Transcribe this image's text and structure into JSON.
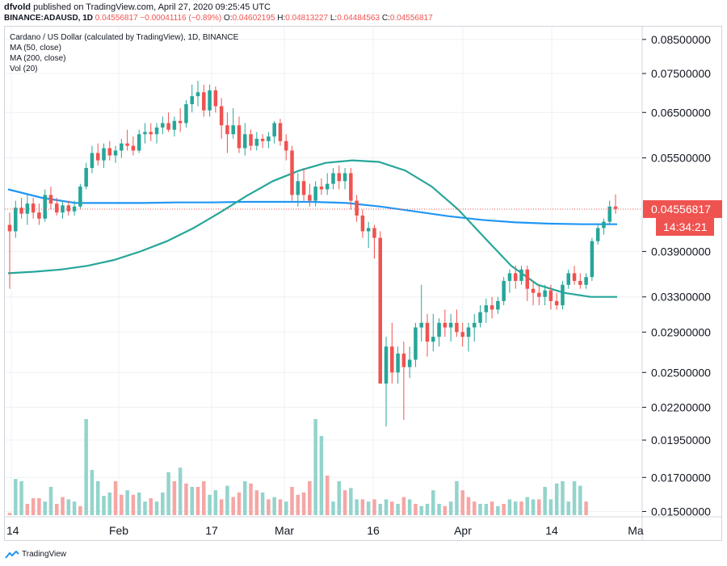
{
  "header": {
    "publisher": "dfvold",
    "published_text": "published on TradingView.com, April 27, 2020 09:25:45 UTC",
    "symbol": "BINANCE:ADAUSD, 1D",
    "last": "0.04556817",
    "change": "−0.00041116 (−0.89%)",
    "o_label": "O:",
    "o": "0.04602195",
    "h_label": "H:",
    "h": "0.04813227",
    "l_label": "L:",
    "l": "0.04484563",
    "c_label": "C:",
    "c": "0.04556817"
  },
  "legend": {
    "title": "Cardano / US Dollar (calculated by TradingView), 1D, BINANCE",
    "ma50": "MA (50, close)",
    "ma200": "MA (200, close)",
    "vol": "Vol (20)"
  },
  "footer": {
    "brand": "TradingView"
  },
  "colors": {
    "up": "#26a69a",
    "down": "#ef5350",
    "ma50": "#26a69a",
    "ma200": "#2196f3",
    "vol_up": "#93d4cc",
    "vol_down": "#f5a6a5"
  },
  "chart_data": {
    "type": "candlestick",
    "title": "Cardano / US Dollar (calculated by TradingView), 1D, BINANCE",
    "y_scale": "log",
    "ylim": [
      0.0148,
      0.087
    ],
    "y_ticks": [
      "0.08500000",
      "0.07500000",
      "0.06500000",
      "0.05500000",
      "0.03900000",
      "0.03300000",
      "0.02900000",
      "0.02500000",
      "0.02200000",
      "0.01950000",
      "0.01700000",
      "0.01500000"
    ],
    "x_ticks": [
      "14",
      "Feb",
      "17",
      "Mar",
      "16",
      "Apr",
      "14",
      "Ma"
    ],
    "last_price_label": "0.04556817",
    "countdown_label": "14:34:21",
    "candles": [
      {
        "o": 0.043,
        "h": 0.045,
        "l": 0.034,
        "c": 0.042
      },
      {
        "o": 0.042,
        "h": 0.047,
        "l": 0.041,
        "c": 0.0458
      },
      {
        "o": 0.0458,
        "h": 0.0475,
        "l": 0.044,
        "c": 0.0448
      },
      {
        "o": 0.0448,
        "h": 0.048,
        "l": 0.043,
        "c": 0.0465
      },
      {
        "o": 0.0465,
        "h": 0.0475,
        "l": 0.044,
        "c": 0.045
      },
      {
        "o": 0.045,
        "h": 0.0465,
        "l": 0.043,
        "c": 0.044
      },
      {
        "o": 0.044,
        "h": 0.049,
        "l": 0.0435,
        "c": 0.048
      },
      {
        "o": 0.048,
        "h": 0.0495,
        "l": 0.0455,
        "c": 0.0465
      },
      {
        "o": 0.0465,
        "h": 0.0475,
        "l": 0.0445,
        "c": 0.045
      },
      {
        "o": 0.045,
        "h": 0.047,
        "l": 0.044,
        "c": 0.0462
      },
      {
        "o": 0.0462,
        "h": 0.047,
        "l": 0.0445,
        "c": 0.0452
      },
      {
        "o": 0.0452,
        "h": 0.047,
        "l": 0.0445,
        "c": 0.046
      },
      {
        "o": 0.046,
        "h": 0.05,
        "l": 0.0455,
        "c": 0.0495
      },
      {
        "o": 0.0495,
        "h": 0.054,
        "l": 0.049,
        "c": 0.053
      },
      {
        "o": 0.053,
        "h": 0.0575,
        "l": 0.052,
        "c": 0.056
      },
      {
        "o": 0.056,
        "h": 0.058,
        "l": 0.0535,
        "c": 0.0545
      },
      {
        "o": 0.0545,
        "h": 0.058,
        "l": 0.053,
        "c": 0.057
      },
      {
        "o": 0.057,
        "h": 0.0585,
        "l": 0.0545,
        "c": 0.0555
      },
      {
        "o": 0.0555,
        "h": 0.0575,
        "l": 0.054,
        "c": 0.0565
      },
      {
        "o": 0.0565,
        "h": 0.059,
        "l": 0.055,
        "c": 0.058
      },
      {
        "o": 0.058,
        "h": 0.061,
        "l": 0.0565,
        "c": 0.0575
      },
      {
        "o": 0.0575,
        "h": 0.0595,
        "l": 0.0555,
        "c": 0.0565
      },
      {
        "o": 0.0565,
        "h": 0.061,
        "l": 0.056,
        "c": 0.06
      },
      {
        "o": 0.06,
        "h": 0.0625,
        "l": 0.058,
        "c": 0.0605
      },
      {
        "o": 0.0605,
        "h": 0.0625,
        "l": 0.0585,
        "c": 0.06
      },
      {
        "o": 0.06,
        "h": 0.0625,
        "l": 0.058,
        "c": 0.0615
      },
      {
        "o": 0.0615,
        "h": 0.064,
        "l": 0.06,
        "c": 0.0625
      },
      {
        "o": 0.0625,
        "h": 0.065,
        "l": 0.0605,
        "c": 0.061
      },
      {
        "o": 0.061,
        "h": 0.064,
        "l": 0.0595,
        "c": 0.063
      },
      {
        "o": 0.063,
        "h": 0.066,
        "l": 0.0605,
        "c": 0.0625
      },
      {
        "o": 0.0625,
        "h": 0.068,
        "l": 0.0615,
        "c": 0.067
      },
      {
        "o": 0.067,
        "h": 0.072,
        "l": 0.065,
        "c": 0.069
      },
      {
        "o": 0.069,
        "h": 0.073,
        "l": 0.0665,
        "c": 0.07
      },
      {
        "o": 0.07,
        "h": 0.072,
        "l": 0.064,
        "c": 0.0655
      },
      {
        "o": 0.0655,
        "h": 0.072,
        "l": 0.064,
        "c": 0.0705
      },
      {
        "o": 0.0705,
        "h": 0.0715,
        "l": 0.065,
        "c": 0.0665
      },
      {
        "o": 0.0665,
        "h": 0.0685,
        "l": 0.059,
        "c": 0.062
      },
      {
        "o": 0.062,
        "h": 0.065,
        "l": 0.056,
        "c": 0.06
      },
      {
        "o": 0.06,
        "h": 0.066,
        "l": 0.059,
        "c": 0.062
      },
      {
        "o": 0.062,
        "h": 0.064,
        "l": 0.056,
        "c": 0.057
      },
      {
        "o": 0.057,
        "h": 0.0625,
        "l": 0.0555,
        "c": 0.06
      },
      {
        "o": 0.06,
        "h": 0.061,
        "l": 0.0565,
        "c": 0.0575
      },
      {
        "o": 0.0575,
        "h": 0.0605,
        "l": 0.0565,
        "c": 0.059
      },
      {
        "o": 0.059,
        "h": 0.06,
        "l": 0.057,
        "c": 0.0585
      },
      {
        "o": 0.0585,
        "h": 0.0605,
        "l": 0.057,
        "c": 0.0595
      },
      {
        "o": 0.0595,
        "h": 0.063,
        "l": 0.058,
        "c": 0.0625
      },
      {
        "o": 0.0625,
        "h": 0.0635,
        "l": 0.0575,
        "c": 0.0585
      },
      {
        "o": 0.0585,
        "h": 0.06,
        "l": 0.0545,
        "c": 0.0565
      },
      {
        "o": 0.0565,
        "h": 0.0575,
        "l": 0.047,
        "c": 0.048
      },
      {
        "o": 0.048,
        "h": 0.052,
        "l": 0.046,
        "c": 0.0505
      },
      {
        "o": 0.0505,
        "h": 0.053,
        "l": 0.047,
        "c": 0.048
      },
      {
        "o": 0.048,
        "h": 0.05,
        "l": 0.046,
        "c": 0.047
      },
      {
        "o": 0.047,
        "h": 0.0505,
        "l": 0.046,
        "c": 0.0495
      },
      {
        "o": 0.0495,
        "h": 0.051,
        "l": 0.048,
        "c": 0.049
      },
      {
        "o": 0.049,
        "h": 0.052,
        "l": 0.048,
        "c": 0.05
      },
      {
        "o": 0.05,
        "h": 0.053,
        "l": 0.049,
        "c": 0.052
      },
      {
        "o": 0.052,
        "h": 0.0535,
        "l": 0.049,
        "c": 0.0505
      },
      {
        "o": 0.0505,
        "h": 0.053,
        "l": 0.049,
        "c": 0.052
      },
      {
        "o": 0.052,
        "h": 0.053,
        "l": 0.0455,
        "c": 0.047
      },
      {
        "o": 0.047,
        "h": 0.048,
        "l": 0.0435,
        "c": 0.0445
      },
      {
        "o": 0.0445,
        "h": 0.0455,
        "l": 0.041,
        "c": 0.042
      },
      {
        "o": 0.042,
        "h": 0.0435,
        "l": 0.0395,
        "c": 0.0425
      },
      {
        "o": 0.0425,
        "h": 0.043,
        "l": 0.038,
        "c": 0.041
      },
      {
        "o": 0.041,
        "h": 0.042,
        "l": 0.0245,
        "c": 0.024
      },
      {
        "o": 0.024,
        "h": 0.0285,
        "l": 0.0205,
        "c": 0.0275
      },
      {
        "o": 0.0275,
        "h": 0.03,
        "l": 0.024,
        "c": 0.025
      },
      {
        "o": 0.025,
        "h": 0.0275,
        "l": 0.024,
        "c": 0.0268
      },
      {
        "o": 0.0268,
        "h": 0.028,
        "l": 0.021,
        "c": 0.0255
      },
      {
        "o": 0.0255,
        "h": 0.0275,
        "l": 0.0245,
        "c": 0.0262
      },
      {
        "o": 0.0262,
        "h": 0.03,
        "l": 0.0255,
        "c": 0.0295
      },
      {
        "o": 0.0295,
        "h": 0.0345,
        "l": 0.028,
        "c": 0.03
      },
      {
        "o": 0.03,
        "h": 0.031,
        "l": 0.0265,
        "c": 0.028
      },
      {
        "o": 0.028,
        "h": 0.031,
        "l": 0.027,
        "c": 0.0285
      },
      {
        "o": 0.0285,
        "h": 0.0305,
        "l": 0.0275,
        "c": 0.03
      },
      {
        "o": 0.03,
        "h": 0.0315,
        "l": 0.0285,
        "c": 0.0295
      },
      {
        "o": 0.0295,
        "h": 0.031,
        "l": 0.028,
        "c": 0.03
      },
      {
        "o": 0.03,
        "h": 0.0315,
        "l": 0.0285,
        "c": 0.029
      },
      {
        "o": 0.029,
        "h": 0.03,
        "l": 0.0275,
        "c": 0.0285
      },
      {
        "o": 0.0285,
        "h": 0.03,
        "l": 0.027,
        "c": 0.0295
      },
      {
        "o": 0.0295,
        "h": 0.031,
        "l": 0.028,
        "c": 0.03
      },
      {
        "o": 0.03,
        "h": 0.032,
        "l": 0.0295,
        "c": 0.0312
      },
      {
        "o": 0.0312,
        "h": 0.0328,
        "l": 0.03,
        "c": 0.032
      },
      {
        "o": 0.032,
        "h": 0.033,
        "l": 0.0305,
        "c": 0.0315
      },
      {
        "o": 0.0315,
        "h": 0.033,
        "l": 0.031,
        "c": 0.0325
      },
      {
        "o": 0.0325,
        "h": 0.0355,
        "l": 0.032,
        "c": 0.035
      },
      {
        "o": 0.035,
        "h": 0.0365,
        "l": 0.0335,
        "c": 0.036
      },
      {
        "o": 0.036,
        "h": 0.037,
        "l": 0.034,
        "c": 0.035
      },
      {
        "o": 0.035,
        "h": 0.037,
        "l": 0.0345,
        "c": 0.0365
      },
      {
        "o": 0.0365,
        "h": 0.037,
        "l": 0.0325,
        "c": 0.034
      },
      {
        "o": 0.034,
        "h": 0.035,
        "l": 0.032,
        "c": 0.0335
      },
      {
        "o": 0.0335,
        "h": 0.0345,
        "l": 0.032,
        "c": 0.033
      },
      {
        "o": 0.033,
        "h": 0.0345,
        "l": 0.032,
        "c": 0.0338
      },
      {
        "o": 0.0338,
        "h": 0.0345,
        "l": 0.0315,
        "c": 0.0325
      },
      {
        "o": 0.0325,
        "h": 0.0335,
        "l": 0.0315,
        "c": 0.032
      },
      {
        "o": 0.032,
        "h": 0.035,
        "l": 0.0315,
        "c": 0.0345
      },
      {
        "o": 0.0345,
        "h": 0.0365,
        "l": 0.034,
        "c": 0.036
      },
      {
        "o": 0.036,
        "h": 0.037,
        "l": 0.0345,
        "c": 0.035
      },
      {
        "o": 0.035,
        "h": 0.036,
        "l": 0.034,
        "c": 0.0345
      },
      {
        "o": 0.0345,
        "h": 0.036,
        "l": 0.034,
        "c": 0.0355
      },
      {
        "o": 0.0355,
        "h": 0.041,
        "l": 0.035,
        "c": 0.0405
      },
      {
        "o": 0.0405,
        "h": 0.043,
        "l": 0.04,
        "c": 0.0425
      },
      {
        "o": 0.0425,
        "h": 0.044,
        "l": 0.0415,
        "c": 0.0435
      },
      {
        "o": 0.0435,
        "h": 0.047,
        "l": 0.043,
        "c": 0.046
      },
      {
        "o": 0.046,
        "h": 0.0481,
        "l": 0.0448,
        "c": 0.0456
      }
    ],
    "volume": [
      {
        "v": 2,
        "up": false
      },
      {
        "v": 32,
        "up": true
      },
      {
        "v": 30,
        "up": true
      },
      {
        "v": 10,
        "up": false
      },
      {
        "v": 15,
        "up": false
      },
      {
        "v": 15,
        "up": false
      },
      {
        "v": 12,
        "up": true
      },
      {
        "v": 25,
        "up": true
      },
      {
        "v": 10,
        "up": false
      },
      {
        "v": 16,
        "up": false
      },
      {
        "v": 14,
        "up": true
      },
      {
        "v": 12,
        "up": true
      },
      {
        "v": 8,
        "up": false
      },
      {
        "v": 85,
        "up": true
      },
      {
        "v": 40,
        "up": true
      },
      {
        "v": 30,
        "up": true
      },
      {
        "v": 17,
        "up": true
      },
      {
        "v": 20,
        "up": true
      },
      {
        "v": 30,
        "up": false
      },
      {
        "v": 18,
        "up": false
      },
      {
        "v": 22,
        "up": true
      },
      {
        "v": 18,
        "up": false
      },
      {
        "v": 20,
        "up": true
      },
      {
        "v": 12,
        "up": true
      },
      {
        "v": 15,
        "up": false
      },
      {
        "v": 12,
        "up": true
      },
      {
        "v": 20,
        "up": true
      },
      {
        "v": 38,
        "up": true
      },
      {
        "v": 30,
        "up": false
      },
      {
        "v": 42,
        "up": true
      },
      {
        "v": 28,
        "up": false
      },
      {
        "v": 25,
        "up": true
      },
      {
        "v": 25,
        "up": false
      },
      {
        "v": 30,
        "up": false
      },
      {
        "v": 18,
        "up": true
      },
      {
        "v": 22,
        "up": true
      },
      {
        "v": 14,
        "up": false
      },
      {
        "v": 26,
        "up": true
      },
      {
        "v": 16,
        "up": false
      },
      {
        "v": 20,
        "up": false
      },
      {
        "v": 30,
        "up": true
      },
      {
        "v": 28,
        "up": false
      },
      {
        "v": 22,
        "up": false
      },
      {
        "v": 20,
        "up": true
      },
      {
        "v": 14,
        "up": false
      },
      {
        "v": 16,
        "up": true
      },
      {
        "v": 14,
        "up": false
      },
      {
        "v": 12,
        "up": true
      },
      {
        "v": 25,
        "up": false
      },
      {
        "v": 18,
        "up": false
      },
      {
        "v": 20,
        "up": false
      },
      {
        "v": 30,
        "up": false
      },
      {
        "v": 85,
        "up": true
      },
      {
        "v": 70,
        "up": true
      },
      {
        "v": 35,
        "up": false
      },
      {
        "v": 12,
        "up": true
      },
      {
        "v": 30,
        "up": true
      },
      {
        "v": 22,
        "up": false
      },
      {
        "v": 24,
        "up": true
      },
      {
        "v": 14,
        "up": true
      },
      {
        "v": 14,
        "up": false
      },
      {
        "v": 12,
        "up": true
      },
      {
        "v": 14,
        "up": false
      },
      {
        "v": 10,
        "up": true
      },
      {
        "v": 14,
        "up": true
      },
      {
        "v": 12,
        "up": false
      },
      {
        "v": 10,
        "up": true
      },
      {
        "v": 16,
        "up": false
      },
      {
        "v": 14,
        "up": true
      },
      {
        "v": 10,
        "up": false
      },
      {
        "v": 8,
        "up": true
      },
      {
        "v": 10,
        "up": true
      },
      {
        "v": 22,
        "up": true
      },
      {
        "v": 10,
        "up": true
      },
      {
        "v": 8,
        "up": false
      },
      {
        "v": 12,
        "up": true
      },
      {
        "v": 30,
        "up": true
      },
      {
        "v": 22,
        "up": false
      },
      {
        "v": 16,
        "up": false
      },
      {
        "v": 12,
        "up": false
      },
      {
        "v": 10,
        "up": true
      },
      {
        "v": 10,
        "up": true
      },
      {
        "v": 12,
        "up": false
      },
      {
        "v": 8,
        "up": true
      },
      {
        "v": 10,
        "up": false
      },
      {
        "v": 14,
        "up": true
      },
      {
        "v": 12,
        "up": true
      },
      {
        "v": 12,
        "up": false
      },
      {
        "v": 16,
        "up": true
      },
      {
        "v": 14,
        "up": true
      },
      {
        "v": 14,
        "up": false
      },
      {
        "v": 25,
        "up": true
      },
      {
        "v": 14,
        "up": true
      },
      {
        "v": 28,
        "up": true
      },
      {
        "v": 30,
        "up": true
      },
      {
        "v": 12,
        "up": true
      },
      {
        "v": 30,
        "up": true
      },
      {
        "v": 26,
        "up": true
      },
      {
        "v": 12,
        "up": false
      }
    ],
    "ma50": [
      0.036,
      0.0362,
      0.0365,
      0.037,
      0.0378,
      0.039,
      0.0405,
      0.0425,
      0.045,
      0.0478,
      0.0505,
      0.0525,
      0.054,
      0.0545,
      0.0542,
      0.0525,
      0.0495,
      0.0455,
      0.041,
      0.037,
      0.0345,
      0.0335,
      0.033,
      0.033
    ],
    "ma200": [
      0.049,
      0.0475,
      0.0466,
      0.0466,
      0.0466,
      0.0467,
      0.0467,
      0.0468,
      0.0468,
      0.0468,
      0.0466,
      0.046,
      0.0452,
      0.0444,
      0.0438,
      0.0434,
      0.0432,
      0.0431,
      0.0431
    ]
  }
}
